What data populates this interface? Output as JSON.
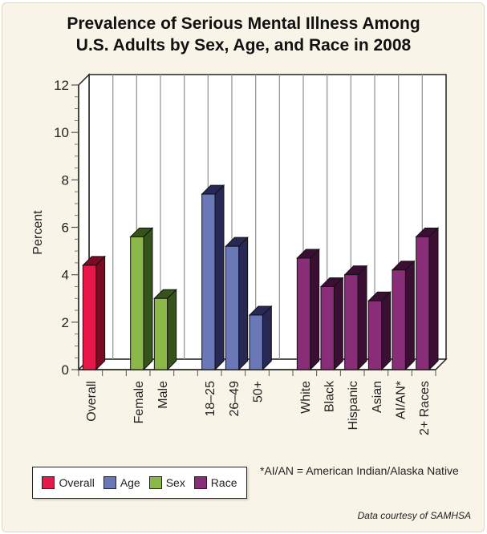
{
  "chart_data": {
    "type": "bar",
    "title": "Prevalence of Serious Mental Illness Among U.S. Adults by Sex, Age, and Race in 2008",
    "title_lines": [
      "Prevalence of Serious Mental Illness Among",
      "U.S. Adults by Sex, Age, and Race in 2008"
    ],
    "xlabel": "",
    "ylabel": "Percent",
    "ylim": [
      0,
      12
    ],
    "yticks": [
      0,
      2,
      4,
      6,
      8,
      10,
      12
    ],
    "grid": true,
    "three_d": true,
    "categories": [
      "Overall",
      "",
      "Female",
      "Male",
      "",
      "18–25",
      "26–49",
      "50+",
      "",
      "White",
      "Black",
      "Hispanic",
      "Asian",
      "AI/AN*",
      "2+ Races"
    ],
    "bars": [
      {
        "label": "Overall",
        "group": "Overall",
        "value": 4.4
      },
      {
        "label": "Female",
        "group": "Sex",
        "value": 5.6
      },
      {
        "label": "Male",
        "group": "Sex",
        "value": 3.0
      },
      {
        "label": "18–25",
        "group": "Age",
        "value": 7.4
      },
      {
        "label": "26–49",
        "group": "Age",
        "value": 5.2
      },
      {
        "label": "50+",
        "group": "Age",
        "value": 2.3
      },
      {
        "label": "White",
        "group": "Race",
        "value": 4.7
      },
      {
        "label": "Black",
        "group": "Race",
        "value": 3.5
      },
      {
        "label": "Hispanic",
        "group": "Race",
        "value": 4.0
      },
      {
        "label": "Asian",
        "group": "Race",
        "value": 2.9
      },
      {
        "label": "AI/AN*",
        "group": "Race",
        "value": 4.2
      },
      {
        "label": "2+ Races",
        "group": "Race",
        "value": 5.6
      }
    ],
    "legend": {
      "placement": "bottom-left",
      "entries": [
        {
          "name": "Overall",
          "color": "#e8174a",
          "side": "#7d0a25"
        },
        {
          "name": "Age",
          "color": "#6a78b8",
          "side": "#272856"
        },
        {
          "name": "Sex",
          "color": "#8cb84a",
          "side": "#35531a"
        },
        {
          "name": "Race",
          "color": "#8a2d78",
          "side": "#3a0f33"
        }
      ]
    },
    "annotations": [
      "*AI/AN = American Indian/Alaska Native",
      "Data courtesy of SAMHSA"
    ]
  }
}
